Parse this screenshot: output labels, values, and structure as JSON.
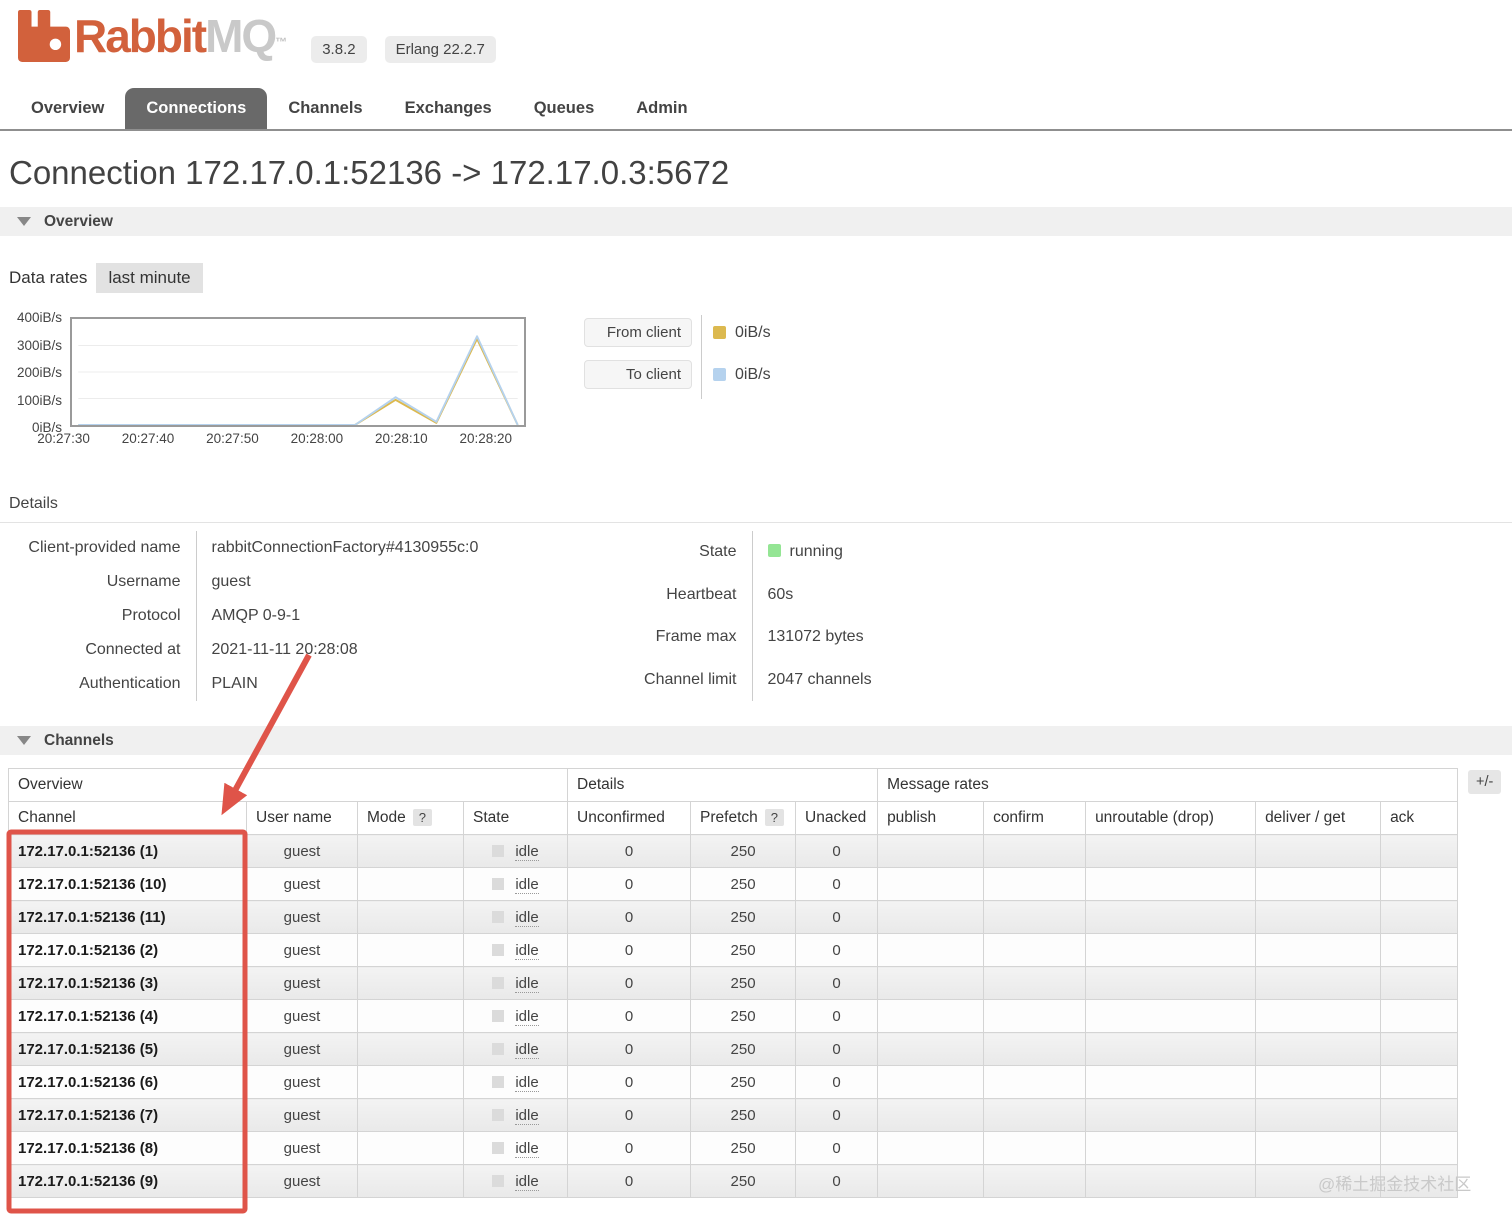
{
  "header": {
    "brand_orange": "Rabbit",
    "brand_gray": "MQ",
    "tm": "™",
    "version_badge": "3.8.2",
    "erlang_badge": "Erlang 22.2.7"
  },
  "nav": {
    "tabs": [
      {
        "label": "Overview",
        "active": false
      },
      {
        "label": "Connections",
        "active": true
      },
      {
        "label": "Channels",
        "active": false
      },
      {
        "label": "Exchanges",
        "active": false
      },
      {
        "label": "Queues",
        "active": false
      },
      {
        "label": "Admin",
        "active": false
      }
    ]
  },
  "page": {
    "title": "Connection 172.17.0.1:52136 -> 172.17.0.3:5672",
    "overview_section": "Overview",
    "channels_section": "Channels",
    "data_rates_label": "Data rates",
    "data_rates_period": "last minute",
    "details_heading": "Details"
  },
  "chart_data": {
    "type": "line",
    "title": "Data rates last minute",
    "ylim": [
      0,
      400
    ],
    "ytick_labels": [
      "400iB/s",
      "300iB/s",
      "200iB/s",
      "100iB/s",
      "0iB/s"
    ],
    "gridlines": [
      100,
      200,
      300
    ],
    "xtick_labels": [
      "20:27:30",
      "20:27:40",
      "20:27:50",
      "20:28:00",
      "20:28:10",
      "20:28:20"
    ],
    "xtick_seconds": [
      0,
      10,
      20,
      30,
      40,
      50
    ],
    "x_domain_seconds": [
      1,
      55
    ],
    "series": [
      {
        "name": "From client",
        "color": "#dcb94f",
        "points": [
          [
            1,
            0
          ],
          [
            35,
            0
          ],
          [
            40,
            95
          ],
          [
            45,
            8
          ],
          [
            50,
            325
          ],
          [
            55,
            0
          ]
        ]
      },
      {
        "name": "To client",
        "color": "#b5d2ee",
        "points": [
          [
            1,
            0
          ],
          [
            35,
            0
          ],
          [
            40,
            105
          ],
          [
            45,
            12
          ],
          [
            50,
            335
          ],
          [
            55,
            0
          ]
        ]
      }
    ],
    "legend": [
      {
        "label": "From client",
        "value": "0iB/s",
        "color": "#dcb94f"
      },
      {
        "label": "To client",
        "value": "0iB/s",
        "color": "#b5d2ee"
      }
    ],
    "legend_position": "right"
  },
  "details": {
    "left": [
      {
        "label": "Client-provided name",
        "value": "rabbitConnectionFactory#4130955c:0"
      },
      {
        "label": "Username",
        "value": "guest"
      },
      {
        "label": "Protocol",
        "value": "AMQP 0-9-1"
      },
      {
        "label": "Connected at",
        "value": "2021-11-11 20:28:08"
      },
      {
        "label": "Authentication",
        "value": "PLAIN"
      }
    ],
    "right": [
      {
        "label": "State",
        "value": "running",
        "swatch": "#94e594"
      },
      {
        "label": "Heartbeat",
        "value": "60s"
      },
      {
        "label": "Frame max",
        "value": "131072 bytes"
      },
      {
        "label": "Channel limit",
        "value": "2047 channels"
      }
    ]
  },
  "channels_table": {
    "group_headers": [
      {
        "label": "Overview",
        "span": 4
      },
      {
        "label": "Details",
        "span": 3
      },
      {
        "label": "Message rates",
        "span": 5
      }
    ],
    "columns": [
      {
        "label": "Channel"
      },
      {
        "label": "User name"
      },
      {
        "label": "Mode",
        "help": "?"
      },
      {
        "label": "State"
      },
      {
        "label": "Unconfirmed"
      },
      {
        "label": "Prefetch",
        "help": "?"
      },
      {
        "label": "Unacked"
      },
      {
        "label": "publish"
      },
      {
        "label": "confirm"
      },
      {
        "label": "unroutable (drop)"
      },
      {
        "label": "deliver / get"
      },
      {
        "label": "ack"
      }
    ],
    "plusminus": "+/-",
    "rows": [
      {
        "channel": "172.17.0.1:52136 (1)",
        "user": "guest",
        "mode": "",
        "state": "idle",
        "unconfirmed": "0",
        "prefetch": "250",
        "unacked": "0",
        "publish": "",
        "confirm": "",
        "unroutable": "",
        "deliver": "",
        "ack": ""
      },
      {
        "channel": "172.17.0.1:52136 (10)",
        "user": "guest",
        "mode": "",
        "state": "idle",
        "unconfirmed": "0",
        "prefetch": "250",
        "unacked": "0",
        "publish": "",
        "confirm": "",
        "unroutable": "",
        "deliver": "",
        "ack": ""
      },
      {
        "channel": "172.17.0.1:52136 (11)",
        "user": "guest",
        "mode": "",
        "state": "idle",
        "unconfirmed": "0",
        "prefetch": "250",
        "unacked": "0",
        "publish": "",
        "confirm": "",
        "unroutable": "",
        "deliver": "",
        "ack": ""
      },
      {
        "channel": "172.17.0.1:52136 (2)",
        "user": "guest",
        "mode": "",
        "state": "idle",
        "unconfirmed": "0",
        "prefetch": "250",
        "unacked": "0",
        "publish": "",
        "confirm": "",
        "unroutable": "",
        "deliver": "",
        "ack": ""
      },
      {
        "channel": "172.17.0.1:52136 (3)",
        "user": "guest",
        "mode": "",
        "state": "idle",
        "unconfirmed": "0",
        "prefetch": "250",
        "unacked": "0",
        "publish": "",
        "confirm": "",
        "unroutable": "",
        "deliver": "",
        "ack": ""
      },
      {
        "channel": "172.17.0.1:52136 (4)",
        "user": "guest",
        "mode": "",
        "state": "idle",
        "unconfirmed": "0",
        "prefetch": "250",
        "unacked": "0",
        "publish": "",
        "confirm": "",
        "unroutable": "",
        "deliver": "",
        "ack": ""
      },
      {
        "channel": "172.17.0.1:52136 (5)",
        "user": "guest",
        "mode": "",
        "state": "idle",
        "unconfirmed": "0",
        "prefetch": "250",
        "unacked": "0",
        "publish": "",
        "confirm": "",
        "unroutable": "",
        "deliver": "",
        "ack": ""
      },
      {
        "channel": "172.17.0.1:52136 (6)",
        "user": "guest",
        "mode": "",
        "state": "idle",
        "unconfirmed": "0",
        "prefetch": "250",
        "unacked": "0",
        "publish": "",
        "confirm": "",
        "unroutable": "",
        "deliver": "",
        "ack": ""
      },
      {
        "channel": "172.17.0.1:52136 (7)",
        "user": "guest",
        "mode": "",
        "state": "idle",
        "unconfirmed": "0",
        "prefetch": "250",
        "unacked": "0",
        "publish": "",
        "confirm": "",
        "unroutable": "",
        "deliver": "",
        "ack": ""
      },
      {
        "channel": "172.17.0.1:52136 (8)",
        "user": "guest",
        "mode": "",
        "state": "idle",
        "unconfirmed": "0",
        "prefetch": "250",
        "unacked": "0",
        "publish": "",
        "confirm": "",
        "unroutable": "",
        "deliver": "",
        "ack": ""
      },
      {
        "channel": "172.17.0.1:52136 (9)",
        "user": "guest",
        "mode": "",
        "state": "idle",
        "unconfirmed": "0",
        "prefetch": "250",
        "unacked": "0",
        "publish": "",
        "confirm": "",
        "unroutable": "",
        "deliver": "",
        "ack": ""
      }
    ]
  },
  "annotation": {
    "color": "#df5449"
  },
  "watermark": "@稀土掘金技术社区"
}
